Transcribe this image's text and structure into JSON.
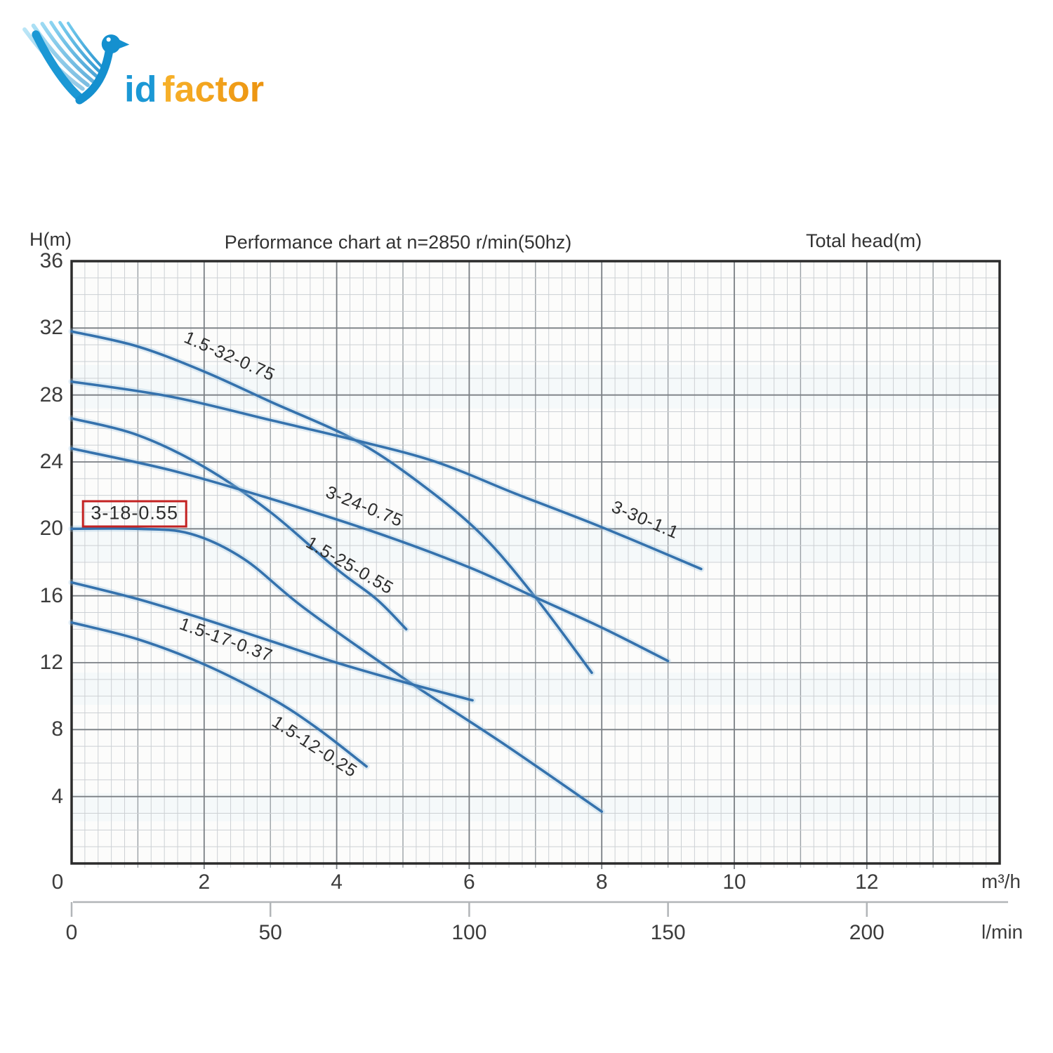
{
  "logo": {
    "wordmark_blue": "id",
    "wordmark_orange": "factor",
    "colors": {
      "blue": "#1b98d5",
      "orange": "#f2a01e"
    }
  },
  "header": {
    "y_axis_label": "H(m)",
    "title": "Performance chart at n=2850 r/min(50hz)",
    "right_label": "Total head(m)"
  },
  "axes": {
    "x_primary_unit": "m³/h",
    "x_secondary_unit": "l/min",
    "x_ticks_m3h": [
      0,
      2,
      4,
      6,
      8,
      10,
      12
    ],
    "x_ticks_lmin": [
      0,
      50,
      100,
      150,
      200
    ],
    "y_ticks": [
      36,
      32,
      28,
      24,
      20,
      16,
      12,
      8,
      4
    ]
  },
  "chart_data": {
    "type": "line",
    "title": "Performance chart at n=2850 r/min(50hz)",
    "xlabel": "m³/h",
    "xlabel_secondary": "l/min",
    "ylabel": "H(m)",
    "ylabel_right": "Total head(m)",
    "xlim_m3h": [
      0,
      14
    ],
    "ylim_m": [
      0,
      36
    ],
    "x_lmin_per_m3h": 16.6667,
    "grid": {
      "minor_x_m3h": 0.2,
      "medium_x_m3h": 1,
      "major_x_m3h": 2,
      "minor_y_m": 1,
      "major_y_m": 4,
      "grid_on": true
    },
    "legend_position": "labels-on-curves",
    "series": [
      {
        "name": "1.5-32-0.75",
        "points": [
          [
            0,
            31.8
          ],
          [
            1,
            30.9
          ],
          [
            2,
            29.4
          ],
          [
            3,
            27.6
          ],
          [
            4.28,
            25.3
          ],
          [
            5.3,
            22.6
          ],
          [
            6.2,
            19.6
          ],
          [
            7,
            15.9
          ],
          [
            7.85,
            11.4
          ]
        ],
        "label": {
          "q": 2.38,
          "h": 30.3,
          "angle": 24,
          "boxed": false
        }
      },
      {
        "name": "3-30-1.1",
        "points": [
          [
            0,
            28.8
          ],
          [
            1.5,
            27.9
          ],
          [
            3,
            26.5
          ],
          [
            4.28,
            25.3
          ],
          [
            5.5,
            24.0
          ],
          [
            6.7,
            22.1
          ],
          [
            8,
            20.1
          ],
          [
            9.5,
            17.6
          ]
        ],
        "label": {
          "q": 8.65,
          "h": 20.5,
          "angle": 23,
          "boxed": false
        }
      },
      {
        "name": "1.5-25-0.55",
        "points": [
          [
            0,
            26.6
          ],
          [
            1,
            25.6
          ],
          [
            2,
            23.7
          ],
          [
            3,
            21.0
          ],
          [
            4,
            17.6
          ],
          [
            4.6,
            15.8
          ],
          [
            5.05,
            14.0
          ]
        ],
        "label": {
          "q": 4.2,
          "h": 17.8,
          "angle": 30,
          "boxed": false
        }
      },
      {
        "name": "3-24-0.75",
        "points": [
          [
            0,
            24.8
          ],
          [
            1.5,
            23.5
          ],
          [
            3,
            21.8
          ],
          [
            4.65,
            19.7
          ],
          [
            6,
            17.7
          ],
          [
            7,
            15.9
          ],
          [
            8,
            14.1
          ],
          [
            9,
            12.1
          ]
        ],
        "label": {
          "q": 4.42,
          "h": 21.3,
          "angle": 22,
          "boxed": false
        }
      },
      {
        "name": "3-18-0.55",
        "points": [
          [
            0,
            20.0
          ],
          [
            1,
            20.0
          ],
          [
            1.8,
            19.7
          ],
          [
            2.6,
            18.2
          ],
          [
            3.5,
            15.3
          ],
          [
            5,
            11.1
          ],
          [
            6.5,
            7.2
          ],
          [
            8,
            3.1
          ]
        ],
        "label": {
          "q": 0.95,
          "h": 20.9,
          "angle": 0,
          "boxed": true
        }
      },
      {
        "name": "1.5-17-0.37",
        "points": [
          [
            0,
            16.8
          ],
          [
            1,
            15.8
          ],
          [
            2,
            14.6
          ],
          [
            3,
            13.3
          ],
          [
            4,
            12.0
          ],
          [
            5.05,
            10.8
          ],
          [
            6.05,
            9.75
          ]
        ],
        "label": {
          "q": 2.33,
          "h": 13.35,
          "angle": 20,
          "boxed": false
        }
      },
      {
        "name": "1.5-12-0.25",
        "points": [
          [
            0,
            14.4
          ],
          [
            1,
            13.4
          ],
          [
            2,
            11.9
          ],
          [
            3,
            9.9
          ],
          [
            3.7,
            8.1
          ],
          [
            4.45,
            5.8
          ]
        ],
        "label": {
          "q": 3.67,
          "h": 6.95,
          "angle": 33,
          "boxed": false
        }
      }
    ],
    "highlighted_series": "3-18-0.55",
    "colors": {
      "curve": "#3572ad",
      "curve_glow": "#9cc4e0",
      "highlight_box": "#c32222",
      "grid_minor": "#ccd0d4",
      "grid_medium": "#9aa0a5",
      "grid_major": "#7a7f84",
      "border": "#2b2b2b",
      "secondary_axis": "#b2b5b8"
    }
  }
}
